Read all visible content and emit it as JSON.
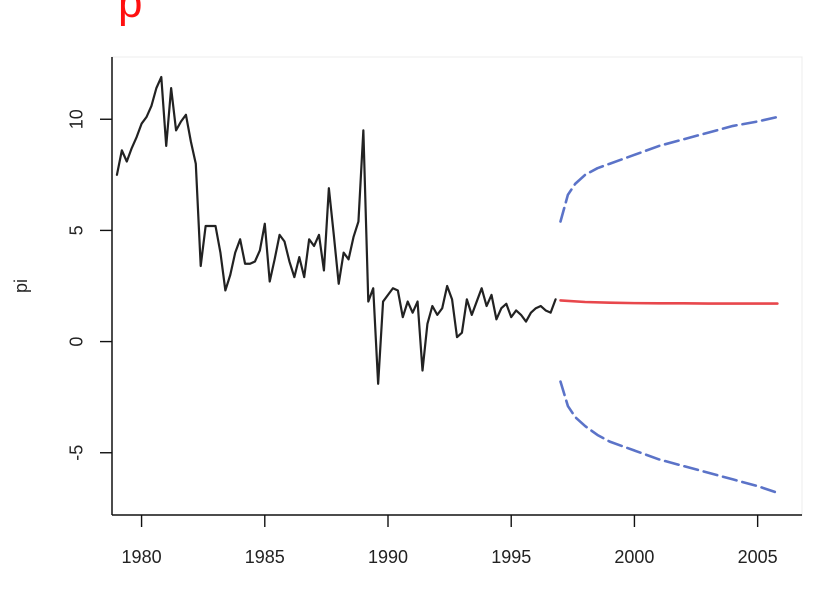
{
  "caption": "p",
  "chart_data": {
    "type": "line",
    "title": "",
    "xlabel": "",
    "ylabel": "pi",
    "xlim": [
      1978.8,
      2006.8
    ],
    "ylim": [
      -7.8,
      12.8
    ],
    "x_ticks": [
      1980,
      1985,
      1990,
      1995,
      2000,
      2005
    ],
    "x_tick_labels": [
      "1980",
      "1985",
      "1990",
      "1995",
      "2000",
      "2005"
    ],
    "y_ticks": [
      -5,
      0,
      5,
      10
    ],
    "y_tick_labels": [
      "-5",
      "0",
      "5",
      "10"
    ],
    "grid": false,
    "legend": "none",
    "series": [
      {
        "color": "#222222",
        "line": "solid",
        "x": [
          1979.0,
          1979.2,
          1979.4,
          1979.6,
          1979.8,
          1980.0,
          1980.2,
          1980.4,
          1980.6,
          1980.8,
          1981.0,
          1981.2,
          1981.4,
          1981.6,
          1981.8,
          1982.0,
          1982.2,
          1982.4,
          1982.6,
          1982.8,
          1983.0,
          1983.2,
          1983.4,
          1983.6,
          1983.8,
          1984.0,
          1984.2,
          1984.4,
          1984.6,
          1984.8,
          1985.0,
          1985.2,
          1985.4,
          1985.6,
          1985.8,
          1986.0,
          1986.2,
          1986.4,
          1986.6,
          1986.8,
          1987.0,
          1987.2,
          1987.4,
          1987.6,
          1987.8,
          1988.0,
          1988.2,
          1988.4,
          1988.6,
          1988.8,
          1989.0,
          1989.2,
          1989.4,
          1989.6,
          1989.8,
          1990.0,
          1990.2,
          1990.4,
          1990.6,
          1990.8,
          1991.0,
          1991.2,
          1991.4,
          1991.6,
          1991.8,
          1992.0,
          1992.2,
          1992.4,
          1992.6,
          1992.8,
          1993.0,
          1993.2,
          1993.4,
          1993.6,
          1993.8,
          1994.0,
          1994.2,
          1994.4,
          1994.6,
          1994.8,
          1995.0,
          1995.2,
          1995.4,
          1995.6,
          1995.8,
          1996.0,
          1996.2,
          1996.4,
          1996.6,
          1996.8
        ],
        "y": [
          7.5,
          8.6,
          8.1,
          8.7,
          9.2,
          9.8,
          10.1,
          10.6,
          11.4,
          11.9,
          8.8,
          11.4,
          9.5,
          9.9,
          10.2,
          9.0,
          8.0,
          3.4,
          5.2,
          5.2,
          5.2,
          4.0,
          2.3,
          3.0,
          4.0,
          4.6,
          3.5,
          3.5,
          3.6,
          4.1,
          5.3,
          2.7,
          3.7,
          4.8,
          4.5,
          3.6,
          2.9,
          3.8,
          2.9,
          4.6,
          4.3,
          4.8,
          3.2,
          6.9,
          4.8,
          2.6,
          4.0,
          3.7,
          4.7,
          5.4,
          9.5,
          1.8,
          2.4,
          -1.9,
          1.8,
          2.1,
          2.4,
          2.3,
          1.1,
          1.8,
          1.3,
          1.8,
          -1.3,
          0.8,
          1.6,
          1.2,
          1.5,
          2.5,
          1.9,
          0.2,
          0.4,
          1.9,
          1.2,
          1.8,
          2.4,
          1.6,
          2.1,
          1.0,
          1.5,
          1.7,
          1.1,
          1.4,
          1.2,
          0.9,
          1.3,
          1.5,
          1.6,
          1.4,
          1.3,
          1.9
        ]
      },
      {
        "color": "#e8474c",
        "line": "solid",
        "x": [
          1997.0,
          1998.0,
          1999.0,
          2000.0,
          2001.0,
          2002.0,
          2003.0,
          2004.0,
          2005.0,
          2005.8
        ],
        "y": [
          1.85,
          1.78,
          1.75,
          1.73,
          1.72,
          1.72,
          1.71,
          1.71,
          1.71,
          1.71
        ]
      },
      {
        "color": "#5b73c8",
        "line": "dashed",
        "x": [
          1997.0,
          1997.3,
          1997.6,
          1998.0,
          1998.5,
          1999.0,
          2000.0,
          2001.0,
          2002.0,
          2003.0,
          2004.0,
          2005.0,
          2005.8
        ],
        "y": [
          5.4,
          6.6,
          7.1,
          7.5,
          7.8,
          8.0,
          8.4,
          8.8,
          9.1,
          9.4,
          9.7,
          9.9,
          10.1
        ]
      },
      {
        "color": "#5b73c8",
        "line": "dashed",
        "x": [
          1997.0,
          1997.3,
          1997.6,
          1998.0,
          1998.5,
          1999.0,
          2000.0,
          2001.0,
          2002.0,
          2003.0,
          2004.0,
          2005.0,
          2005.8
        ],
        "y": [
          -1.8,
          -2.9,
          -3.4,
          -3.8,
          -4.2,
          -4.5,
          -4.9,
          -5.3,
          -5.6,
          -5.9,
          -6.2,
          -6.5,
          -6.8
        ]
      }
    ]
  }
}
